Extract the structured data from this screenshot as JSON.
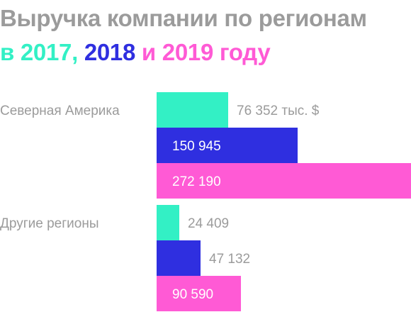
{
  "title": "Выручка компании по регионам",
  "subtitle": {
    "prefix": "в ",
    "y2017": "2017",
    "sep1": ", ",
    "y2018": "2018",
    "sep2": " и ",
    "y2019": "2019",
    "suffix": " году"
  },
  "colors": {
    "title": "#9b9b9b",
    "label": "#9b9b9b",
    "y2017": "#33f0c5",
    "y2018": "#2f2fe0",
    "y2019": "#ff5ad5"
  },
  "chart_data": {
    "type": "bar",
    "orientation": "horizontal",
    "categories": [
      "Северная Америка",
      "Другие регионы"
    ],
    "series": [
      {
        "name": "2017",
        "values": [
          76352,
          24409
        ],
        "labels": [
          "76 352 тыс. $",
          "24 409"
        ]
      },
      {
        "name": "2018",
        "values": [
          150945,
          47132
        ],
        "labels": [
          "150 945",
          "47 132"
        ]
      },
      {
        "name": "2019",
        "values": [
          272190,
          90590
        ],
        "labels": [
          "272 190",
          "90 590"
        ]
      }
    ],
    "xlim": [
      0,
      272190
    ],
    "grid": false,
    "legend": "none"
  }
}
